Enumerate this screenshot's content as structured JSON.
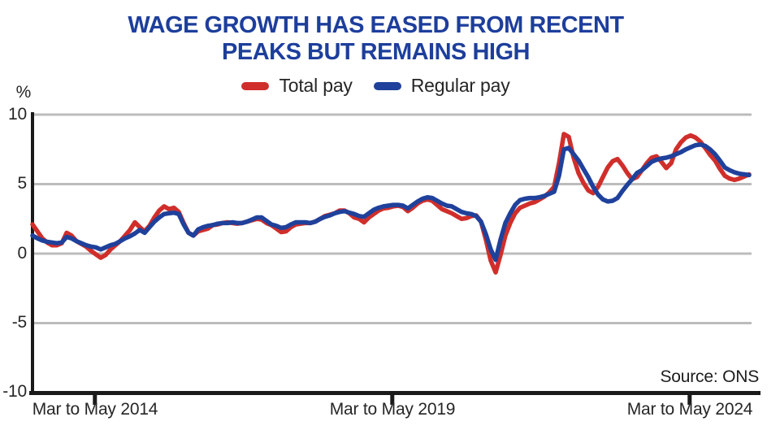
{
  "header": {
    "title_line1": "WAGE GROWTH HAS EASED FROM RECENT",
    "title_line2": "PEAKS BUT REMAINS HIGH",
    "title_color": "#1d3e9c"
  },
  "source_label": "Source: ONS",
  "chart_data": {
    "type": "line",
    "title": "WAGE GROWTH HAS EASED FROM RECENT PEAKS BUT REMAINS HIGH",
    "ylabel": "%",
    "ylim": [
      -10,
      10
    ],
    "yticks": [
      10,
      5,
      0,
      -5,
      -10
    ],
    "grid": true,
    "grid_color": "#bcbcbc",
    "axis_color": "#1a1a1a",
    "legend_position": "top",
    "x_tick_labels": [
      "Mar to May 2014",
      "Mar to May 2019",
      "Mar to May 2024"
    ],
    "x_tick_indices": [
      12.8,
      73.8,
      134.8
    ],
    "x_description": "monthly 3-month-average periods between labelled ticks",
    "series": [
      {
        "name": "Total pay",
        "color": "#d02e2b",
        "values": [
          2.1,
          1.6,
          1.1,
          0.8,
          0.6,
          0.6,
          0.75,
          1.5,
          1.3,
          0.9,
          0.7,
          0.5,
          0.2,
          -0.05,
          -0.3,
          -0.1,
          0.3,
          0.6,
          0.9,
          1.3,
          1.7,
          2.25,
          1.9,
          1.6,
          2.0,
          2.6,
          3.1,
          3.4,
          3.2,
          3.3,
          3.0,
          2.2,
          1.5,
          1.3,
          1.6,
          1.7,
          1.8,
          2.05,
          2.1,
          2.2,
          2.25,
          2.2,
          2.15,
          2.2,
          2.3,
          2.4,
          2.5,
          2.45,
          2.2,
          2.05,
          1.8,
          1.55,
          1.6,
          1.9,
          2.1,
          2.15,
          2.2,
          2.2,
          2.3,
          2.5,
          2.7,
          2.8,
          2.9,
          3.1,
          3.1,
          2.9,
          2.6,
          2.5,
          2.25,
          2.6,
          2.85,
          3.1,
          3.25,
          3.3,
          3.4,
          3.45,
          3.35,
          3.05,
          3.3,
          3.6,
          3.8,
          3.9,
          3.8,
          3.5,
          3.2,
          3.05,
          2.9,
          2.7,
          2.5,
          2.55,
          2.7,
          2.75,
          2.3,
          1.0,
          -0.5,
          -1.35,
          -0.1,
          1.3,
          2.2,
          2.9,
          3.3,
          3.45,
          3.6,
          3.7,
          3.9,
          4.1,
          4.4,
          4.8,
          6.5,
          8.6,
          8.4,
          6.9,
          5.8,
          5.1,
          4.55,
          4.35,
          4.8,
          5.5,
          6.2,
          6.65,
          6.8,
          6.35,
          5.8,
          5.35,
          5.5,
          6.0,
          6.5,
          6.9,
          7.0,
          6.6,
          6.15,
          6.5,
          7.5,
          8.0,
          8.35,
          8.5,
          8.35,
          8.05,
          7.6,
          7.1,
          6.7,
          6.1,
          5.6,
          5.4,
          5.3,
          5.4,
          5.55,
          5.7
        ]
      },
      {
        "name": "Regular pay",
        "color": "#1f419b",
        "values": [
          1.3,
          1.1,
          0.95,
          0.85,
          0.8,
          0.75,
          0.8,
          1.2,
          1.1,
          0.9,
          0.75,
          0.6,
          0.5,
          0.45,
          0.3,
          0.45,
          0.6,
          0.7,
          0.9,
          1.1,
          1.25,
          1.45,
          1.7,
          1.5,
          1.9,
          2.3,
          2.6,
          2.85,
          2.9,
          2.95,
          2.85,
          2.1,
          1.5,
          1.3,
          1.75,
          1.9,
          2.0,
          2.05,
          2.15,
          2.2,
          2.2,
          2.25,
          2.2,
          2.2,
          2.3,
          2.45,
          2.6,
          2.6,
          2.35,
          2.1,
          2.0,
          1.85,
          1.9,
          2.1,
          2.25,
          2.25,
          2.25,
          2.2,
          2.3,
          2.5,
          2.65,
          2.75,
          2.9,
          3.0,
          3.05,
          2.95,
          2.85,
          2.7,
          2.65,
          2.9,
          3.15,
          3.3,
          3.4,
          3.45,
          3.5,
          3.5,
          3.45,
          3.25,
          3.5,
          3.75,
          3.95,
          4.05,
          4.0,
          3.8,
          3.6,
          3.45,
          3.4,
          3.2,
          3.0,
          2.9,
          2.85,
          2.7,
          2.3,
          1.4,
          0.3,
          -0.45,
          1.0,
          2.2,
          2.9,
          3.5,
          3.85,
          3.95,
          4.0,
          4.0,
          4.05,
          4.15,
          4.3,
          4.45,
          5.6,
          7.5,
          7.6,
          7.15,
          6.7,
          6.1,
          5.5,
          4.8,
          4.25,
          3.9,
          3.75,
          3.8,
          4.0,
          4.5,
          4.95,
          5.35,
          5.8,
          6.0,
          6.3,
          6.6,
          6.75,
          6.85,
          6.9,
          7.0,
          7.15,
          7.3,
          7.5,
          7.65,
          7.8,
          7.85,
          7.75,
          7.5,
          7.15,
          6.7,
          6.2,
          6.0,
          5.85,
          5.75,
          5.7,
          5.65
        ]
      }
    ]
  }
}
